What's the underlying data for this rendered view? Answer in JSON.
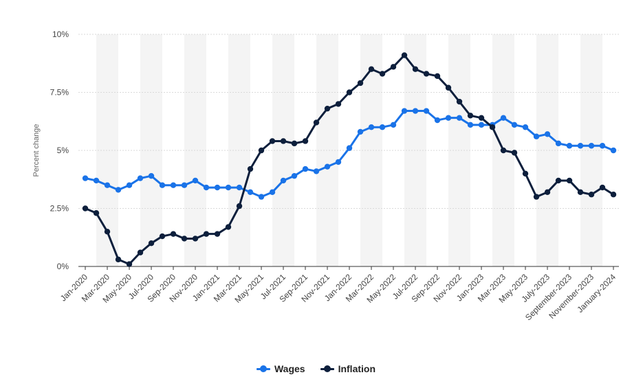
{
  "chart_data": {
    "type": "line",
    "ylabel": "Percent change",
    "ylim": [
      0,
      10
    ],
    "yticks": [
      {
        "value": 0,
        "label": "0%"
      },
      {
        "value": 2.5,
        "label": "2.5%"
      },
      {
        "value": 5,
        "label": "5%"
      },
      {
        "value": 7.5,
        "label": "7.5%"
      },
      {
        "value": 10,
        "label": "10%"
      }
    ],
    "x": [
      "Jan-2020",
      "Feb-2020",
      "Mar-2020",
      "Apr-2020",
      "May-2020",
      "Jun-2020",
      "Jul-2020",
      "Aug-2020",
      "Sep-2020",
      "Oct-2020",
      "Nov-2020",
      "Dec-2020",
      "Jan-2021",
      "Feb-2021",
      "Mar-2021",
      "Apr-2021",
      "May-2021",
      "Jun-2021",
      "Jul-2021",
      "Aug-2021",
      "Sep-2021",
      "Oct-2021",
      "Nov-2021",
      "Dec-2021",
      "Jan-2022",
      "Feb-2022",
      "Mar-2022",
      "Apr-2022",
      "May-2022",
      "Jun-2022",
      "Jul-2022",
      "Aug-2022",
      "Sep-2022",
      "Oct-2022",
      "Nov-2022",
      "Dec-2022",
      "Jan-2023",
      "Feb-2023",
      "Mar-2023",
      "Apr-2023",
      "May-2023",
      "June-2023",
      "July-2023",
      "August-2023",
      "September-2023",
      "October-2023",
      "November-2023",
      "December-2023",
      "January-2024"
    ],
    "x_tick_labels": [
      "Jan-2020",
      "Mar-2020",
      "May-2020",
      "Jul-2020",
      "Sep-2020",
      "Nov-2020",
      "Jan-2021",
      "Mar-2021",
      "May-2021",
      "Jul-2021",
      "Sep-2021",
      "Nov-2021",
      "Jan-2022",
      "Mar-2022",
      "May-2022",
      "Jul-2022",
      "Sep-2022",
      "Nov-2022",
      "Jan-2023",
      "Mar-2023",
      "May-2023",
      "July-2023",
      "September-2023",
      "November-2023",
      "January-2024"
    ],
    "series": [
      {
        "name": "Wages",
        "color": "#1a73e8",
        "values": [
          3.8,
          3.7,
          3.5,
          3.3,
          3.5,
          3.8,
          3.9,
          3.5,
          3.5,
          3.5,
          3.7,
          3.4,
          3.4,
          3.4,
          3.4,
          3.2,
          3.0,
          3.2,
          3.7,
          3.9,
          4.2,
          4.1,
          4.3,
          4.5,
          5.1,
          5.8,
          6.0,
          6.0,
          6.1,
          6.7,
          6.7,
          6.7,
          6.3,
          6.4,
          6.4,
          6.1,
          6.1,
          6.1,
          6.4,
          6.1,
          6.0,
          5.6,
          5.7,
          5.3,
          5.2,
          5.2,
          5.2,
          5.2,
          5.0
        ]
      },
      {
        "name": "Inflation",
        "color": "#0d1f3c",
        "values": [
          2.5,
          2.3,
          1.5,
          0.3,
          0.1,
          0.6,
          1.0,
          1.3,
          1.4,
          1.2,
          1.2,
          1.4,
          1.4,
          1.7,
          2.6,
          4.2,
          5.0,
          5.4,
          5.4,
          5.3,
          5.4,
          6.2,
          6.8,
          7.0,
          7.5,
          7.9,
          8.5,
          8.3,
          8.6,
          9.1,
          8.5,
          8.3,
          8.2,
          7.7,
          7.1,
          6.5,
          6.4,
          6.0,
          5.0,
          4.9,
          4.0,
          3.0,
          3.2,
          3.7,
          3.7,
          3.2,
          3.1,
          3.4,
          3.1
        ]
      }
    ],
    "grid": true,
    "legend_position": "bottom-center"
  }
}
